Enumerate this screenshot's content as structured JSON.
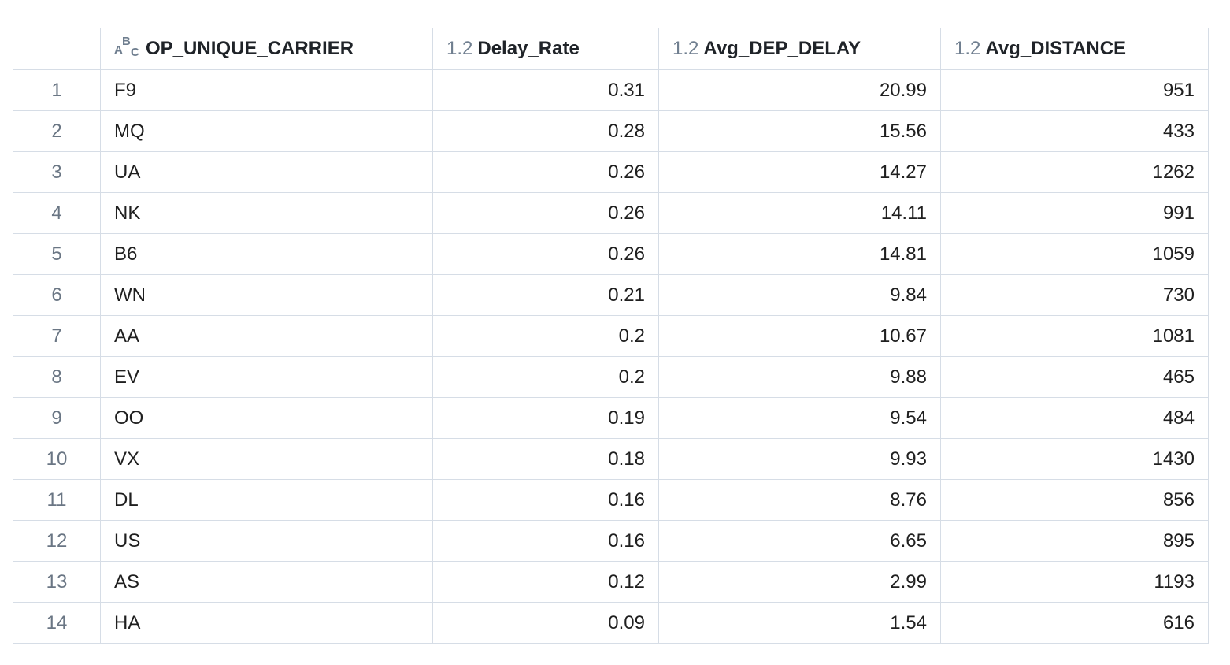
{
  "table": {
    "columns": [
      {
        "key": "idx",
        "label": "",
        "type_icon": ""
      },
      {
        "key": "carrier",
        "label": "OP_UNIQUE_CARRIER",
        "type_icon": "text-type-icon"
      },
      {
        "key": "delay_rate",
        "label": "Delay_Rate",
        "type_icon": "1.2"
      },
      {
        "key": "avg_dep_delay",
        "label": "Avg_DEP_DELAY",
        "type_icon": "1.2"
      },
      {
        "key": "avg_distance",
        "label": "Avg_DISTANCE",
        "type_icon": "1.2"
      }
    ],
    "rows": [
      {
        "idx": "1",
        "carrier": "F9",
        "delay_rate": "0.31",
        "avg_dep_delay": "20.99",
        "avg_distance": "951"
      },
      {
        "idx": "2",
        "carrier": "MQ",
        "delay_rate": "0.28",
        "avg_dep_delay": "15.56",
        "avg_distance": "433"
      },
      {
        "idx": "3",
        "carrier": "UA",
        "delay_rate": "0.26",
        "avg_dep_delay": "14.27",
        "avg_distance": "1262"
      },
      {
        "idx": "4",
        "carrier": "NK",
        "delay_rate": "0.26",
        "avg_dep_delay": "14.11",
        "avg_distance": "991"
      },
      {
        "idx": "5",
        "carrier": "B6",
        "delay_rate": "0.26",
        "avg_dep_delay": "14.81",
        "avg_distance": "1059"
      },
      {
        "idx": "6",
        "carrier": "WN",
        "delay_rate": "0.21",
        "avg_dep_delay": "9.84",
        "avg_distance": "730"
      },
      {
        "idx": "7",
        "carrier": "AA",
        "delay_rate": "0.2",
        "avg_dep_delay": "10.67",
        "avg_distance": "1081"
      },
      {
        "idx": "8",
        "carrier": "EV",
        "delay_rate": "0.2",
        "avg_dep_delay": "9.88",
        "avg_distance": "465"
      },
      {
        "idx": "9",
        "carrier": "OO",
        "delay_rate": "0.19",
        "avg_dep_delay": "9.54",
        "avg_distance": "484"
      },
      {
        "idx": "10",
        "carrier": "VX",
        "delay_rate": "0.18",
        "avg_dep_delay": "9.93",
        "avg_distance": "1430"
      },
      {
        "idx": "11",
        "carrier": "DL",
        "delay_rate": "0.16",
        "avg_dep_delay": "8.76",
        "avg_distance": "856"
      },
      {
        "idx": "12",
        "carrier": "US",
        "delay_rate": "0.16",
        "avg_dep_delay": "6.65",
        "avg_distance": "895"
      },
      {
        "idx": "13",
        "carrier": "AS",
        "delay_rate": "0.12",
        "avg_dep_delay": "2.99",
        "avg_distance": "1193"
      },
      {
        "idx": "14",
        "carrier": "HA",
        "delay_rate": "0.09",
        "avg_dep_delay": "1.54",
        "avg_distance": "616"
      }
    ]
  },
  "colors": {
    "border": "#d6dde6",
    "type_icon": "#6f7e8f",
    "row_index": "#6a7684",
    "text": "#1f1f1f"
  }
}
